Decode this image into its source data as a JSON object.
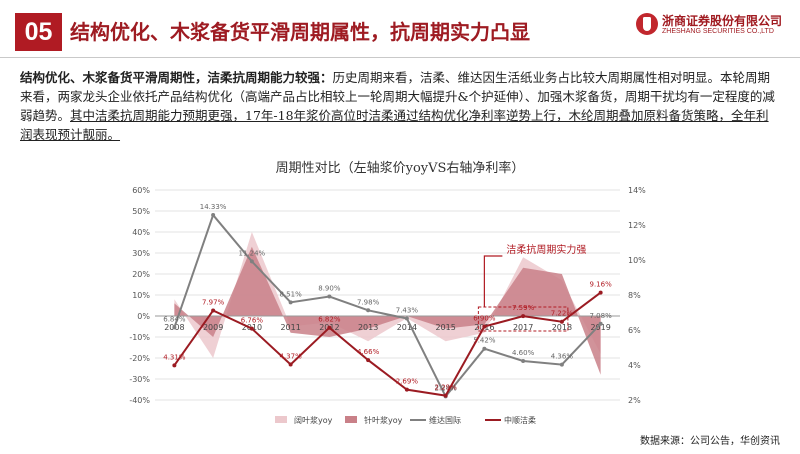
{
  "header": {
    "section_number": "05",
    "title": "结构优化、木浆备货平滑周期属性，抗周期实力凸显",
    "logo_cn": "浙商证券股份有限公司",
    "logo_en": "ZHESHANG SECURITIES CO.,LTD"
  },
  "paragraph": {
    "lead_bold": "结构优化、木浆备货平滑周期性，洁柔抗周期能力较强：",
    "body": "历史周期来看，洁柔、维达因生活纸业务占比较大周期属性相对明显。本轮周期来看，两家龙头企业依托产品结构优化（高端产品占比相较上一轮周期大幅提升&个护延伸）、加强木浆备货，周期干扰均有一定程度的减弱趋势。",
    "underlined": "其中洁柔抗周期能力预期更强，17年-18年浆价高位时洁柔通过结构优化净利率逆势上行，木纶周期叠加原料备货策略，全年利润表现预计靓丽。"
  },
  "chart_data": {
    "type": "line",
    "title": "周期性对比（左轴浆价yoyVS右轴净利率）",
    "x": [
      "2008",
      "2009",
      "2010",
      "2011",
      "2012",
      "2013",
      "2014",
      "2015",
      "2016",
      "2017",
      "2018",
      "2019"
    ],
    "left_axis": {
      "min": -0.4,
      "max": 0.6,
      "ticks": [
        "-40%",
        "-30%",
        "-20%",
        "-10%",
        "0%",
        "10%",
        "20%",
        "30%",
        "40%",
        "50%",
        "60%"
      ]
    },
    "right_axis": {
      "min": 0.02,
      "max": 0.16,
      "ticks": [
        "2%",
        "4%",
        "6%",
        "8%",
        "10%",
        "12%",
        "14%"
      ]
    },
    "series": [
      {
        "name": "阔叶浆yoy",
        "type": "area",
        "axis": "left",
        "color": "#ecc8cc",
        "values": [
          0.08,
          -0.2,
          0.4,
          -0.05,
          -0.03,
          -0.12,
          -0.01,
          -0.12,
          -0.08,
          0.28,
          0.17,
          -0.18
        ]
      },
      {
        "name": "针叶浆yoy",
        "type": "area",
        "axis": "left",
        "color": "#c98088",
        "values": [
          0.06,
          -0.1,
          0.33,
          -0.08,
          -0.1,
          -0.06,
          0.0,
          -0.06,
          -0.04,
          0.23,
          0.2,
          -0.28
        ]
      },
      {
        "name": "维达国际",
        "type": "line",
        "axis": "right",
        "color": "#808080",
        "values": [
          0.0684,
          0.1433,
          0.1124,
          0.0851,
          0.089,
          0.0798,
          0.0743,
          0.0224,
          0.0542,
          0.046,
          0.0436,
          0.0708
        ],
        "labels": [
          "6.84%",
          "14.33%",
          "11.24%",
          "8.51%",
          "8.90%",
          "7.98%",
          "7.43%",
          "2.24%",
          "5.42%",
          "4.60%",
          "4.36%",
          "7.08%"
        ]
      },
      {
        "name": "中顺洁柔",
        "type": "line",
        "axis": "right",
        "color": "#9b1b22",
        "values": [
          0.0431,
          0.0797,
          0.0676,
          0.0437,
          0.0682,
          0.0466,
          0.0269,
          0.0229,
          0.069,
          0.0759,
          0.0722,
          0.0916
        ],
        "labels": [
          "4.31%",
          "7.97%",
          "6.76%",
          "4.37%",
          "6.82%",
          "4.66%",
          "2.69%",
          "2.29%",
          "6.90%",
          "7.59%",
          "7.22%",
          "9.16%"
        ]
      }
    ],
    "annotation": "洁柔抗周期实力强",
    "grid": true,
    "legend": "bottom"
  },
  "footer": {
    "source": "数据来源：公司公告，华创资讯"
  }
}
